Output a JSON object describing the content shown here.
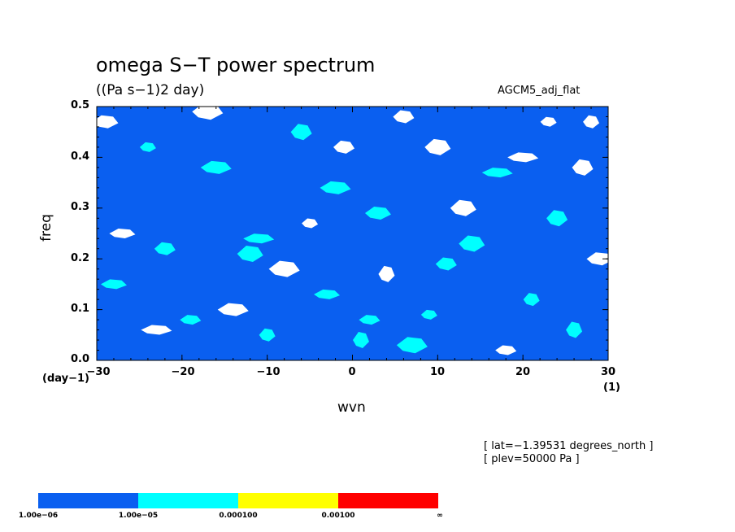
{
  "title": "omega S−T power spectrum",
  "subtitle": "((Pa s−1)2 day)",
  "dataset": "AGCM5_adj_flat",
  "info": {
    "lat": "[ lat=−1.39531 degrees_north ]",
    "plev": "[ plev=50000 Pa ]"
  },
  "chart_data": {
    "type": "heatmap",
    "title": "omega S−T power spectrum",
    "subtitle": "((Pa s−1)2 day)",
    "xlabel": "wvn",
    "ylabel": "freq",
    "x_unit": "(1)",
    "y_unit": "(day−1)",
    "xlim": [
      -30,
      30
    ],
    "ylim": [
      0.0,
      0.5
    ],
    "x_ticks": [
      "−30",
      "−20",
      "−10",
      "0",
      "10",
      "20",
      "30"
    ],
    "y_ticks": [
      "0.0",
      "0.1",
      "0.2",
      "0.3",
      "0.4",
      "0.5"
    ],
    "levels": [
      "1.00e−06",
      "1.00e−05",
      "0.000100",
      "0.00100",
      "∞"
    ],
    "colors": [
      "#0a5ff0",
      "#00ffff",
      "#ffff00",
      "#ff0000"
    ],
    "background": "#ffffff",
    "dominant_band": "1.00e-06 to 1.00e-05",
    "secondary_band": "1.00e-05 to 0.000100",
    "patches": [
      {
        "band": 1,
        "x": -24,
        "y": 0.42
      },
      {
        "band": 1,
        "x": -22,
        "y": 0.22
      },
      {
        "band": 1,
        "x": -12,
        "y": 0.21
      },
      {
        "band": 1,
        "x": -11,
        "y": 0.24
      },
      {
        "band": 1,
        "x": -10,
        "y": 0.05
      },
      {
        "band": 1,
        "x": -6,
        "y": 0.45
      },
      {
        "band": 1,
        "x": -3,
        "y": 0.13
      },
      {
        "band": 1,
        "x": -2,
        "y": 0.34
      },
      {
        "band": 1,
        "x": 1,
        "y": 0.04
      },
      {
        "band": 1,
        "x": 2,
        "y": 0.08
      },
      {
        "band": 1,
        "x": 3,
        "y": 0.29
      },
      {
        "band": 1,
        "x": 7,
        "y": 0.03
      },
      {
        "band": 1,
        "x": 9,
        "y": 0.09
      },
      {
        "band": 1,
        "x": 11,
        "y": 0.19
      },
      {
        "band": 1,
        "x": 14,
        "y": 0.23
      },
      {
        "band": 1,
        "x": 17,
        "y": 0.37
      },
      {
        "band": 1,
        "x": 21,
        "y": 0.12
      },
      {
        "band": 1,
        "x": 24,
        "y": 0.28
      },
      {
        "band": 1,
        "x": -28,
        "y": 0.15
      },
      {
        "band": 1,
        "x": -16,
        "y": 0.38
      },
      {
        "band": 1,
        "x": 26,
        "y": 0.06
      },
      {
        "band": 1,
        "x": -19,
        "y": 0.08
      },
      {
        "band": 0,
        "x": -29,
        "y": 0.47
      },
      {
        "band": 0,
        "x": -17,
        "y": 0.49
      },
      {
        "band": 0,
        "x": -5,
        "y": 0.27
      },
      {
        "band": 0,
        "x": 6,
        "y": 0.48
      },
      {
        "band": 0,
        "x": 13,
        "y": 0.3
      },
      {
        "band": 0,
        "x": 20,
        "y": 0.4
      },
      {
        "band": 0,
        "x": 28,
        "y": 0.47
      },
      {
        "band": 0,
        "x": 27,
        "y": 0.38
      },
      {
        "band": 0,
        "x": -27,
        "y": 0.25
      },
      {
        "band": 0,
        "x": -14,
        "y": 0.1
      },
      {
        "band": 0,
        "x": 4,
        "y": 0.17
      },
      {
        "band": 0,
        "x": 18,
        "y": 0.02
      },
      {
        "band": 0,
        "x": 29,
        "y": 0.2
      },
      {
        "band": 0,
        "x": -8,
        "y": 0.18
      },
      {
        "band": 0,
        "x": 23,
        "y": 0.47
      },
      {
        "band": 0,
        "x": -1,
        "y": 0.42
      },
      {
        "band": 0,
        "x": 10,
        "y": 0.42
      },
      {
        "band": 0,
        "x": -23,
        "y": 0.06
      }
    ]
  }
}
